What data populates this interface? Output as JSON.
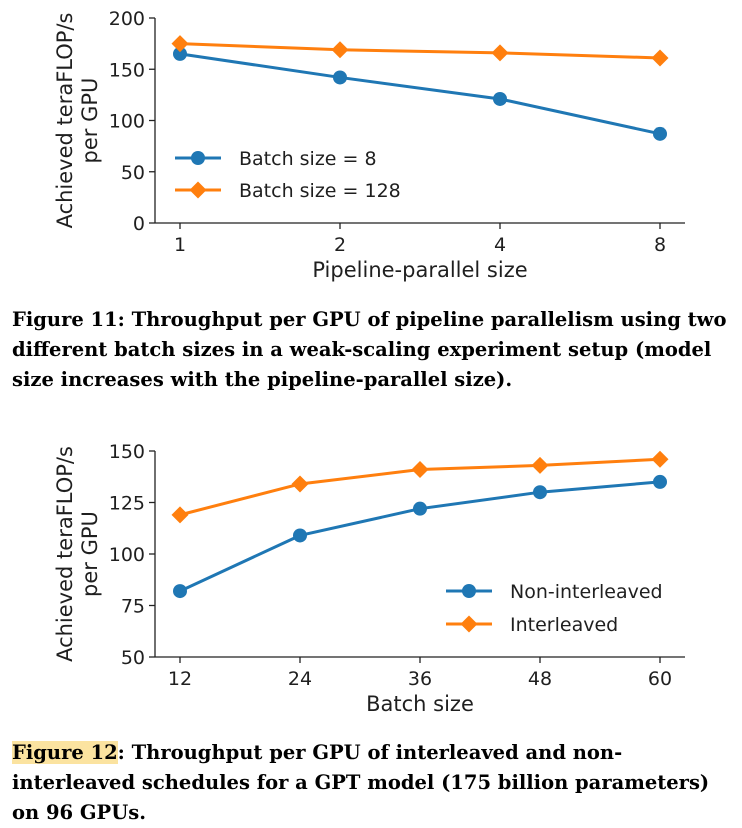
{
  "charts": [
    {
      "type": "line",
      "xlabel": "Pipeline-parallel size",
      "ylabel_line1": "Achieved teraFLOP/s",
      "ylabel_line2": "per GPU",
      "categories": [
        "1",
        "2",
        "4",
        "8"
      ],
      "yticks": [
        0,
        50,
        100,
        150,
        200
      ],
      "ylim": [
        0,
        200
      ],
      "grid": false,
      "legend_position": "lower-left",
      "series": [
        {
          "name": "Batch size = 8",
          "values": [
            165,
            142,
            121,
            87
          ],
          "color": "#1f77b4",
          "marker": "circle"
        },
        {
          "name": "Batch size = 128",
          "values": [
            175,
            169,
            166,
            161
          ],
          "color": "#ff7f0e",
          "marker": "diamond"
        }
      ],
      "caption_label": "Figure 11",
      "caption_text": ": Throughput per GPU of pipeline parallelism using two different batch sizes in a weak-scaling experiment setup (model size increases with the pipeline-parallel size)."
    },
    {
      "type": "line",
      "xlabel": "Batch size",
      "ylabel_line1": "Achieved teraFLOP/s",
      "ylabel_line2": "per GPU",
      "categories": [
        "12",
        "24",
        "36",
        "48",
        "60"
      ],
      "yticks": [
        50,
        75,
        100,
        125,
        150
      ],
      "ylim": [
        50,
        150
      ],
      "grid": false,
      "legend_position": "lower-right",
      "series": [
        {
          "name": "Non-interleaved",
          "values": [
            82,
            109,
            122,
            130,
            135
          ],
          "color": "#1f77b4",
          "marker": "circle"
        },
        {
          "name": "Interleaved",
          "values": [
            119,
            134,
            141,
            143,
            146
          ],
          "color": "#ff7f0e",
          "marker": "diamond"
        }
      ],
      "caption_label": "Figure 12",
      "caption_text": ": Throughput per GPU of interleaved and non-interleaved schedules for a GPT model (175 billion parameters) on 96 GPUs."
    }
  ]
}
